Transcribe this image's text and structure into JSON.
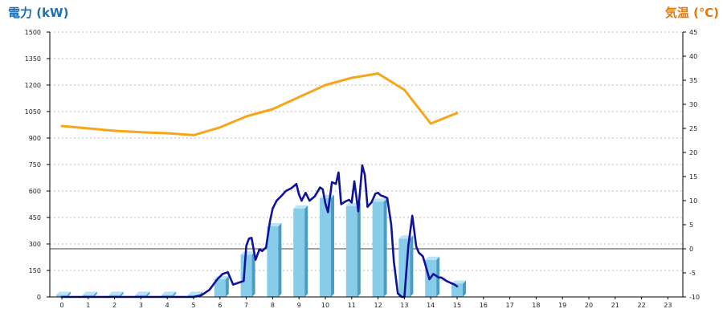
{
  "chart_data": {
    "type": "bar+line",
    "y_left_title": "電力 (kW)",
    "y_right_title": "気温 (℃)",
    "colors": {
      "left_title": "#1f6fb2",
      "right_title": "#e07a10",
      "bar_front": "#87cdea",
      "bar_side": "#4a9cc0",
      "bar_top": "#b8e4f5",
      "power_line": "#10129a",
      "temp_line": "#f6a618",
      "grid": "#bbbbbb",
      "zero_line": "#000000"
    },
    "grid": true,
    "x_ticks": [
      0,
      1,
      2,
      3,
      4,
      5,
      6,
      7,
      8,
      9,
      10,
      11,
      12,
      13,
      14,
      15,
      16,
      17,
      18,
      19,
      20,
      21,
      22,
      23
    ],
    "x_tick_labels": [
      "0",
      "1",
      "2",
      "3",
      "4",
      "5",
      "6",
      "7",
      "8",
      "9",
      "10",
      "11",
      "12",
      "13",
      "14",
      "15",
      "16",
      "17",
      "18",
      "19",
      "20",
      "21",
      "22",
      "23"
    ],
    "y_left_range": [
      0,
      1500
    ],
    "y_left_ticks": [
      0,
      150,
      300,
      450,
      600,
      750,
      900,
      1050,
      1200,
      1350,
      1500
    ],
    "y_left_tick_labels": [
      "0",
      "150",
      "300",
      "450",
      "600",
      "750",
      "900",
      "1050",
      "1200",
      "1350",
      "1500"
    ],
    "y_right_range": [
      -10,
      45
    ],
    "y_right_ticks": [
      -10,
      -5,
      0,
      5,
      10,
      15,
      20,
      25,
      30,
      35,
      40,
      45
    ],
    "y_right_tick_labels": [
      "-10",
      "-5",
      "0",
      "5",
      "10",
      "15",
      "20",
      "25",
      "30",
      "35",
      "40",
      "45"
    ],
    "hourly_power_bars": {
      "x": [
        0,
        1,
        2,
        3,
        4,
        5,
        6,
        7,
        8,
        9,
        10,
        11,
        12,
        13,
        14,
        15
      ],
      "values": [
        12,
        12,
        12,
        12,
        12,
        12,
        100,
        240,
        400,
        500,
        560,
        515,
        540,
        330,
        210,
        75
      ]
    },
    "power_line": {
      "x": [
        0,
        1,
        2,
        3,
        4,
        5,
        5.3,
        5.6,
        5.9,
        6.1,
        6.3,
        6.5,
        6.7,
        6.9,
        7.0,
        7.1,
        7.2,
        7.35,
        7.5,
        7.6,
        7.75,
        7.9,
        8.0,
        8.15,
        8.35,
        8.5,
        8.7,
        8.9,
        9.0,
        9.1,
        9.25,
        9.4,
        9.6,
        9.8,
        9.9,
        10.0,
        10.1,
        10.25,
        10.4,
        10.5,
        10.6,
        10.75,
        10.9,
        11.0,
        11.1,
        11.25,
        11.4,
        11.5,
        11.6,
        11.75,
        11.9,
        12.0,
        12.1,
        12.2,
        12.35,
        12.5,
        12.6,
        12.75,
        12.9,
        13.0,
        13.15,
        13.3,
        13.45,
        13.55,
        13.7,
        13.8,
        13.95,
        14.1,
        14.3,
        14.4,
        14.5,
        14.6,
        14.75,
        14.9,
        15.0
      ],
      "values": [
        0,
        0,
        0,
        0,
        0,
        0,
        10,
        40,
        100,
        130,
        140,
        70,
        80,
        90,
        290,
        330,
        335,
        210,
        270,
        260,
        280,
        430,
        500,
        545,
        575,
        600,
        615,
        640,
        580,
        545,
        590,
        545,
        570,
        620,
        610,
        530,
        480,
        650,
        640,
        705,
        525,
        540,
        550,
        535,
        655,
        485,
        745,
        690,
        510,
        535,
        585,
        590,
        575,
        570,
        560,
        410,
        200,
        20,
        0,
        0,
        290,
        460,
        285,
        250,
        230,
        180,
        100,
        130,
        110,
        110,
        100,
        90,
        80,
        70,
        60
      ]
    },
    "temperature_line": {
      "x": [
        0,
        1,
        2,
        3,
        4,
        5,
        6,
        7,
        8,
        9,
        10,
        11,
        12,
        13,
        14,
        15
      ],
      "values": [
        25.5,
        25,
        24.5,
        24.2,
        24,
        23.6,
        25.2,
        27.5,
        29,
        31.5,
        34,
        35.5,
        36.4,
        33,
        26,
        28.2
      ]
    }
  }
}
